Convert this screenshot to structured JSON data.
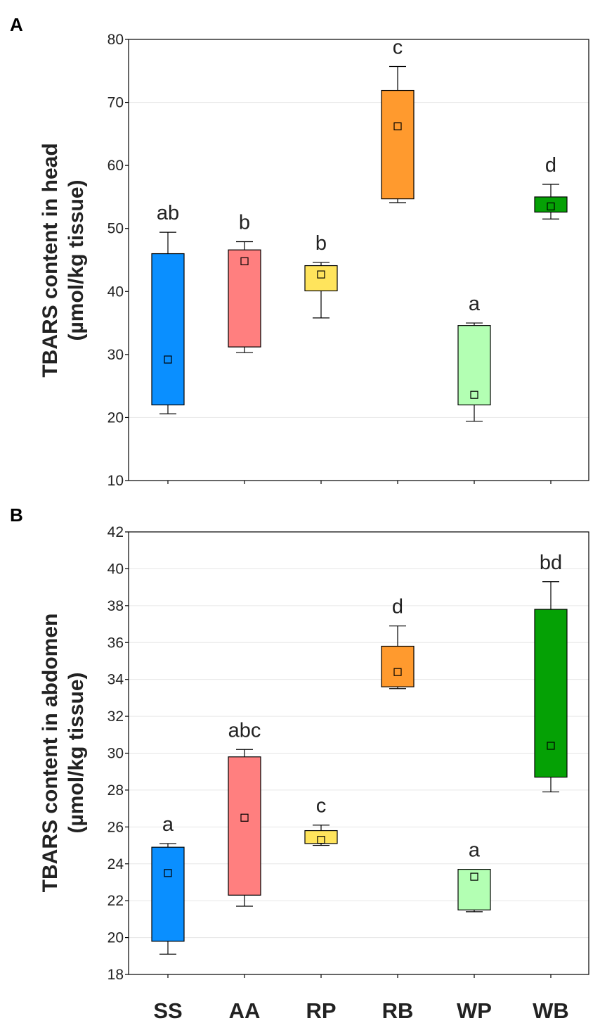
{
  "figure": {
    "x_categories": [
      "SS",
      "AA",
      "RP",
      "RB",
      "WP",
      "WB"
    ]
  },
  "colors": {
    "SS": "#0a8fff",
    "AA": "#ff7f7f",
    "RP": "#ffe45c",
    "RB": "#ff9a2e",
    "WP": "#b3ffb3",
    "WB": "#05a105",
    "axis": "#000000",
    "grid": "#e6e6e6"
  },
  "chart_data": [
    {
      "type": "box",
      "panel_label": "A",
      "ylabel_line1": "TBARS content in head",
      "ylabel_line2": "(µmol/kg tissue)",
      "ylim": [
        10,
        80
      ],
      "yticks": [
        "10",
        "20",
        "30",
        "40",
        "50",
        "60",
        "70",
        "80"
      ],
      "gridlines": [
        20,
        70
      ],
      "categories": [
        "SS",
        "AA",
        "RP",
        "RB",
        "WP",
        "WB"
      ],
      "boxes": [
        {
          "category": "SS",
          "whisker_low": 20.6,
          "q1": 22.0,
          "median": 29.2,
          "q3": 46.0,
          "whisker_high": 49.4,
          "letter": "ab"
        },
        {
          "category": "AA",
          "whisker_low": 30.3,
          "q1": 31.2,
          "median": 44.8,
          "q3": 46.6,
          "whisker_high": 47.9,
          "letter": "b"
        },
        {
          "category": "RP",
          "whisker_low": 35.8,
          "q1": 40.1,
          "median": 42.7,
          "q3": 44.1,
          "whisker_high": 44.6,
          "letter": "b"
        },
        {
          "category": "RB",
          "whisker_low": 54.1,
          "q1": 54.7,
          "median": 66.2,
          "q3": 71.9,
          "whisker_high": 75.7,
          "letter": "c"
        },
        {
          "category": "WP",
          "whisker_low": 19.4,
          "q1": 22.0,
          "median": 23.6,
          "q3": 34.6,
          "whisker_high": 35.0,
          "letter": "a"
        },
        {
          "category": "WB",
          "whisker_low": 51.5,
          "q1": 52.6,
          "median": 53.5,
          "q3": 55.0,
          "whisker_high": 57.0,
          "letter": "d"
        }
      ]
    },
    {
      "type": "box",
      "panel_label": "B",
      "ylabel_line1": "TBARS content in abdomen",
      "ylabel_line2": "(µmol/kg tissue)",
      "ylim": [
        18,
        42
      ],
      "yticks": [
        "18",
        "20",
        "22",
        "24",
        "26",
        "28",
        "30",
        "32",
        "34",
        "36",
        "38",
        "40",
        "42"
      ],
      "gridlines": [
        20,
        22,
        24,
        26,
        28,
        30,
        32,
        34,
        36,
        38,
        40
      ],
      "categories": [
        "SS",
        "AA",
        "RP",
        "RB",
        "WP",
        "WB"
      ],
      "boxes": [
        {
          "category": "SS",
          "whisker_low": 19.1,
          "q1": 19.8,
          "median": 23.5,
          "q3": 24.9,
          "whisker_high": 25.1,
          "letter": "a"
        },
        {
          "category": "AA",
          "whisker_low": 21.7,
          "q1": 22.3,
          "median": 26.5,
          "q3": 29.8,
          "whisker_high": 30.2,
          "letter": "abc"
        },
        {
          "category": "RP",
          "whisker_low": 25.0,
          "q1": 25.1,
          "median": 25.3,
          "q3": 25.8,
          "whisker_high": 26.1,
          "letter": "c"
        },
        {
          "category": "RB",
          "whisker_low": 33.5,
          "q1": 33.6,
          "median": 34.4,
          "q3": 35.8,
          "whisker_high": 36.9,
          "letter": "d"
        },
        {
          "category": "WP",
          "whisker_low": 21.4,
          "q1": 21.5,
          "median": 23.3,
          "q3": 23.7,
          "whisker_high": 23.7,
          "letter": "a"
        },
        {
          "category": "WB",
          "whisker_low": 27.9,
          "q1": 28.7,
          "median": 30.4,
          "q3": 37.8,
          "whisker_high": 39.3,
          "letter": "bd"
        }
      ]
    }
  ]
}
